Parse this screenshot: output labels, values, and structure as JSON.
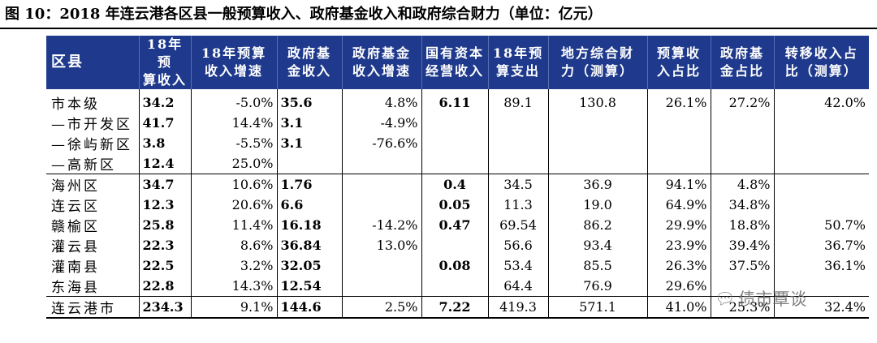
{
  "figure": {
    "title": "图 10：2018 年连云港各区县一般预算收入、政府基金收入和政府综合财力（单位：亿元）"
  },
  "table": {
    "headers": [
      [
        "区县",
        ""
      ],
      [
        "18年预",
        "算收入"
      ],
      [
        "18年预算",
        "收入增速"
      ],
      [
        "政府基",
        "金收入"
      ],
      [
        "政府基金",
        "收入增速"
      ],
      [
        "国有资本",
        "经营收入"
      ],
      [
        "18年预",
        "算支出"
      ],
      [
        "地方综合财",
        "力（测算）"
      ],
      [
        "预算收",
        "入占比"
      ],
      [
        "政府基",
        "金占比"
      ],
      [
        "转移收入占",
        "比（测算）"
      ]
    ],
    "rows": [
      [
        "市本级",
        "34.2",
        "-5.0%",
        "35.6",
        "4.8%",
        "6.11",
        "89.1",
        "130.8",
        "26.1%",
        "27.2%",
        "42.0%"
      ],
      [
        "—市开发区",
        "41.7",
        "14.4%",
        "3.1",
        "-4.9%",
        "",
        "",
        "",
        "",
        "",
        ""
      ],
      [
        "—徐屿新区",
        "3.8",
        "-5.5%",
        "3.1",
        "-76.6%",
        "",
        "",
        "",
        "",
        "",
        ""
      ],
      [
        "—高新区",
        "12.4",
        "25.0%",
        "",
        "",
        "",
        "",
        "",
        "",
        "",
        ""
      ],
      [
        "海州区",
        "34.7",
        "10.6%",
        "1.76",
        "",
        "0.4",
        "34.5",
        "36.9",
        "94.1%",
        "4.8%",
        ""
      ],
      [
        "连云区",
        "12.3",
        "20.6%",
        "6.6",
        "",
        "0.05",
        "11.3",
        "19.0",
        "64.9%",
        "34.8%",
        ""
      ],
      [
        "赣榆区",
        "25.8",
        "11.4%",
        "16.18",
        "-14.2%",
        "0.47",
        "69.54",
        "86.2",
        "29.9%",
        "18.8%",
        "50.7%"
      ],
      [
        "灌云县",
        "22.3",
        "8.6%",
        "36.84",
        "13.0%",
        "",
        "56.6",
        "93.4",
        "23.9%",
        "39.4%",
        "36.7%"
      ],
      [
        "灌南县",
        "22.5",
        "3.2%",
        "32.05",
        "",
        "0.08",
        "53.4",
        "85.5",
        "26.3%",
        "37.5%",
        "36.1%"
      ],
      [
        "东海县",
        "22.8",
        "14.3%",
        "12.54",
        "",
        "",
        "64.4",
        "76.9",
        "29.6%",
        "",
        ""
      ],
      [
        "连云港市",
        "234.3",
        "9.1%",
        "144.6",
        "2.5%",
        "7.22",
        "419.3",
        "571.1",
        "41.0%",
        "25.3%",
        "32.4%"
      ]
    ]
  },
  "watermark": {
    "icon": "wechat-bubble-icon",
    "text": "债市覃谈"
  }
}
